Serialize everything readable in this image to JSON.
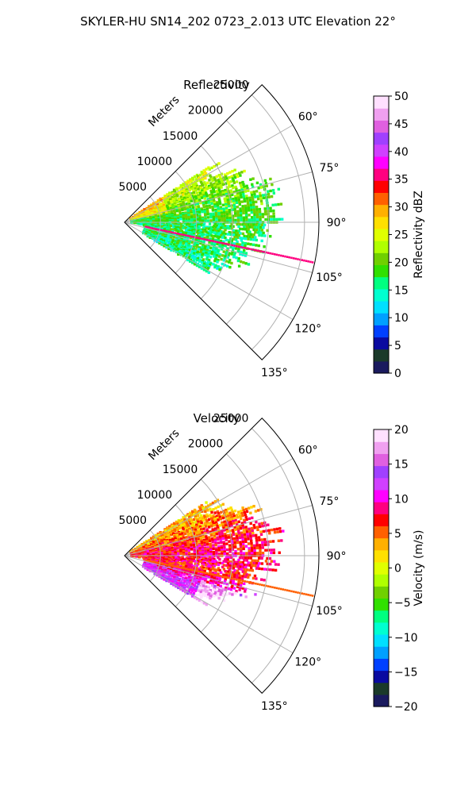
{
  "figure_title": "SKYLER-HU  SN14_202  0723_2.013 UTC Elevation 22°",
  "chart_data": [
    {
      "type": "heatmap",
      "title": "Reflectivity",
      "radial_label": "Meters",
      "radial_ticks": [
        5000,
        10000,
        15000,
        20000,
        25000
      ],
      "radial_tick_labels": [
        "5000",
        "10000",
        "15000",
        "20000",
        "25000"
      ],
      "r_max": 27000,
      "azimuth_range_deg": [
        45,
        135
      ],
      "azimuth_ticks": [
        60,
        75,
        90,
        105,
        120,
        135
      ],
      "azimuth_tick_labels": [
        "60°",
        "75°",
        "90°",
        "105°",
        "120°",
        "135°"
      ],
      "grid": true,
      "colorbar": {
        "label": "Reflectivity dBZ",
        "range": [
          0,
          50
        ],
        "ticks": [
          0,
          5,
          10,
          15,
          20,
          25,
          30,
          35,
          40,
          45,
          50
        ],
        "tick_labels": [
          "0",
          "5",
          "10",
          "15",
          "20",
          "25",
          "30",
          "35",
          "40",
          "45",
          "50"
        ],
        "colors": [
          "#1a1a5e",
          "#1b3a2a",
          "#0a0aa0",
          "#0040ff",
          "#00a0ff",
          "#00e0ff",
          "#00ffd0",
          "#00ff80",
          "#30e000",
          "#70d000",
          "#b0ff00",
          "#e0ff00",
          "#ffe000",
          "#ffb000",
          "#ff6000",
          "#ff0000",
          "#ff0080",
          "#ff00ff",
          "#d040ff",
          "#a040ff",
          "#e060e0",
          "#f0a0f0",
          "#ffe0ff"
        ]
      },
      "echo_summary": [
        {
          "az_deg": 62,
          "r_from": 1000,
          "r_to": 15000,
          "dbz": 24
        },
        {
          "az_deg": 70,
          "r_from": 1000,
          "r_to": 19000,
          "dbz": 21
        },
        {
          "az_deg": 80,
          "r_from": 1000,
          "r_to": 22000,
          "dbz": 19
        },
        {
          "az_deg": 90,
          "r_from": 1000,
          "r_to": 21000,
          "dbz": 18
        },
        {
          "az_deg": 100,
          "r_from": 3000,
          "r_to": 19000,
          "dbz": 17
        },
        {
          "az_deg": 110,
          "r_from": 3000,
          "r_to": 17000,
          "dbz": 17
        },
        {
          "az_deg": 118,
          "r_from": 3000,
          "r_to": 13000,
          "dbz": 16
        }
      ],
      "spike": {
        "az_deg": 102,
        "dbz": 35
      }
    },
    {
      "type": "heatmap",
      "title": "Velocity",
      "radial_label": "Meters",
      "radial_ticks": [
        5000,
        10000,
        15000,
        20000,
        25000
      ],
      "radial_tick_labels": [
        "5000",
        "10000",
        "15000",
        "20000",
        "25000"
      ],
      "r_max": 27000,
      "azimuth_range_deg": [
        45,
        135
      ],
      "azimuth_ticks": [
        60,
        75,
        90,
        105,
        120,
        135
      ],
      "azimuth_tick_labels": [
        "60°",
        "75°",
        "90°",
        "105°",
        "120°",
        "135°"
      ],
      "grid": true,
      "colorbar": {
        "label": "Velocity (m/s)",
        "range": [
          -20,
          20
        ],
        "ticks": [
          -20,
          -15,
          -10,
          -5,
          0,
          5,
          10,
          15,
          20
        ],
        "tick_labels": [
          "−20",
          "−15",
          "−10",
          "−5",
          "0",
          "5",
          "10",
          "15",
          "20"
        ],
        "colors": [
          "#1a1a5e",
          "#1b3a2a",
          "#0a0aa0",
          "#0040ff",
          "#00a0ff",
          "#00e0ff",
          "#00ffd0",
          "#00ff80",
          "#30e000",
          "#70d000",
          "#b0ff00",
          "#e0ff00",
          "#ffe000",
          "#ffb000",
          "#ff6000",
          "#ff0000",
          "#ff0080",
          "#ff00ff",
          "#d040ff",
          "#a040ff",
          "#e060e0",
          "#f0a0f0",
          "#ffe0ff"
        ]
      },
      "echo_summary": [
        {
          "az_deg": 62,
          "r_from": 1000,
          "r_to": 15000,
          "vel": 3
        },
        {
          "az_deg": 70,
          "r_from": 1000,
          "r_to": 19000,
          "vel": 5
        },
        {
          "az_deg": 80,
          "r_from": 1000,
          "r_to": 22000,
          "vel": 7
        },
        {
          "az_deg": 90,
          "r_from": 1000,
          "r_to": 21000,
          "vel": 8
        },
        {
          "az_deg": 100,
          "r_from": 3000,
          "r_to": 19000,
          "vel": 7
        },
        {
          "az_deg": 110,
          "r_from": 3000,
          "r_to": 17000,
          "vel": 11
        },
        {
          "az_deg": 118,
          "r_from": 3000,
          "r_to": 13000,
          "vel": 13
        }
      ],
      "spike": {
        "az_deg": 102,
        "vel": 5
      }
    }
  ]
}
